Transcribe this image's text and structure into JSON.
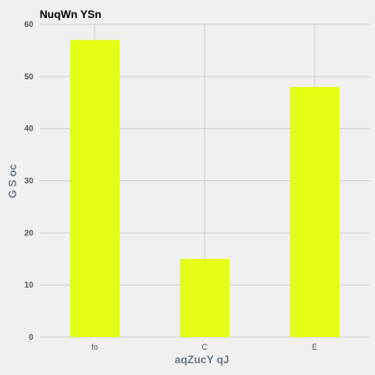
{
  "chart_data": {
    "type": "bar",
    "title": "NuqWn  YSn",
    "xlabel": "aqZucY qJ",
    "ylabel": "G  S oc",
    "categories": [
      "fo",
      "C",
      "E"
    ],
    "values": [
      57,
      15,
      48
    ],
    "ylim": [
      0,
      60
    ],
    "yticks": [
      0,
      10,
      20,
      30,
      40,
      50,
      60
    ],
    "grid": true,
    "bar_color": "#e5ff14",
    "background_color": "#f0f0f0",
    "grid_color": "#cfcfcf"
  }
}
